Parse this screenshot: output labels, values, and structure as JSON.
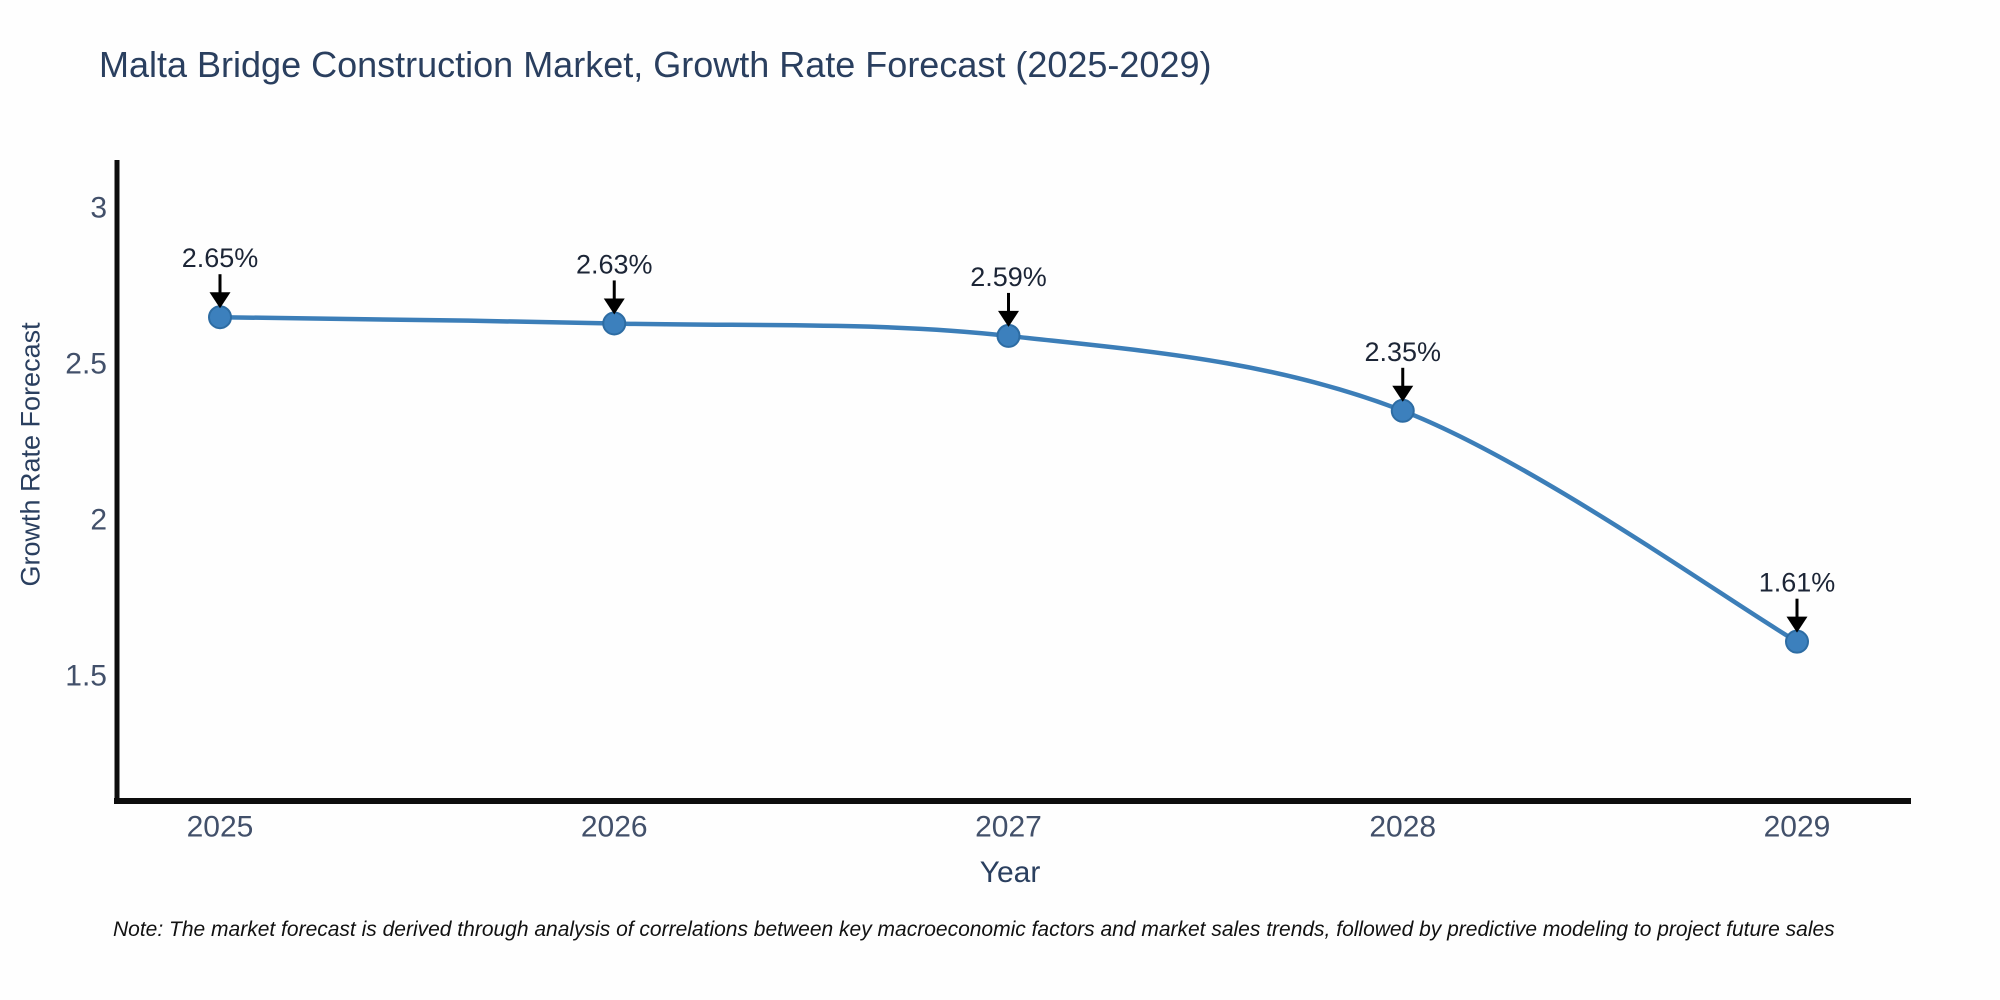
{
  "title": "Malta Bridge Construction Market, Growth Rate Forecast (2025-2029)",
  "note": "Note: The market forecast is derived through analysis of correlations between key macroeconomic factors and market sales trends, followed by predictive modeling to project future sales",
  "chart_data": {
    "type": "line",
    "title": "Malta Bridge Construction Market, Growth Rate Forecast (2025-2029)",
    "xlabel": "Year",
    "ylabel": "Growth Rate Forecast",
    "x": [
      2025,
      2026,
      2027,
      2028,
      2029
    ],
    "series": [
      {
        "name": "Growth Rate Forecast",
        "values": [
          2.65,
          2.63,
          2.59,
          2.35,
          1.61
        ]
      }
    ],
    "point_labels": [
      "2.65%",
      "2.63%",
      "2.59%",
      "2.35%",
      "1.61%"
    ],
    "x_tick_labels": [
      "2025",
      "2026",
      "2027",
      "2028",
      "2029"
    ],
    "y_tick_labels": [
      "3",
      "2.5",
      "2",
      "1.5"
    ],
    "y_tick_values": [
      3,
      2.5,
      2,
      1.5
    ],
    "xlim": [
      2024.74,
      2029.29
    ],
    "ylim": [
      1.1,
      3.15
    ],
    "grid": false,
    "legend_position": "none",
    "line_shape": "spline",
    "colors": {
      "line": "#3c7eb8",
      "marker_fill": "#3c80bd",
      "marker_edge": "#2d6ca3",
      "axis_line": "#0d0d0d",
      "tick_label": "#42506a",
      "annotation_text": "#1c2536",
      "annotation_arrow": "#000000",
      "title_text": "#2a3f5f",
      "background": "#fefefe"
    }
  }
}
